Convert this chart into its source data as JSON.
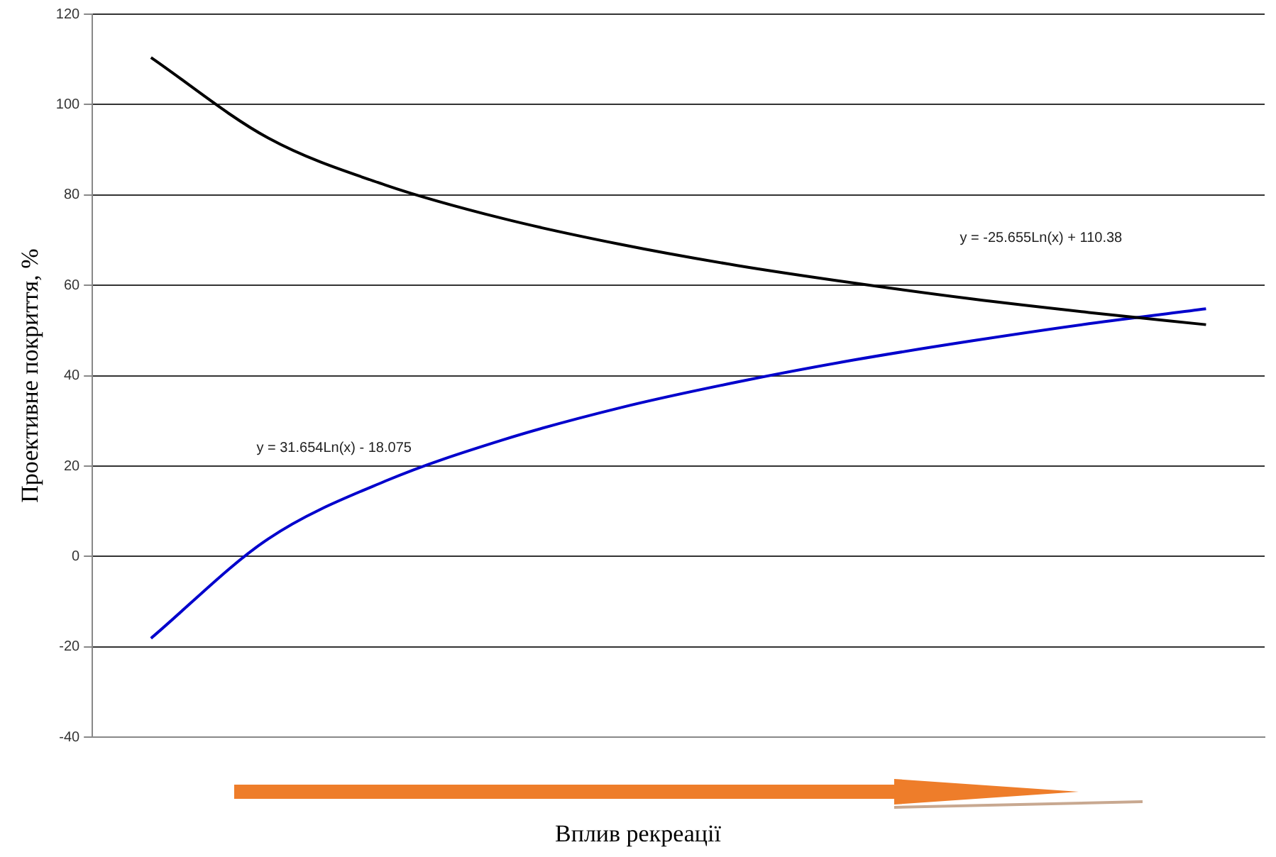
{
  "chart_data": {
    "type": "line",
    "ylabel": "Проективне покриття, %",
    "xlabel": "Вплив рекреації",
    "categories": [
      null,
      null,
      null,
      null,
      null,
      null,
      null,
      null,
      null,
      null
    ],
    "series": [
      {
        "color": "#000000",
        "values": [
          110.4,
          92.6,
          82.2,
          74.8,
          69.1,
          64.4,
          60.5,
          57.0,
          54.0,
          51.3
        ]
      },
      {
        "color": "#0000cc",
        "values": [
          -18.1,
          3.9,
          16.7,
          25.8,
          32.9,
          38.6,
          43.5,
          47.7,
          51.5,
          54.8
        ]
      }
    ],
    "ylim": [
      -40,
      120
    ],
    "yticks": [
      -40,
      -20,
      0,
      20,
      40,
      60,
      80,
      100,
      120
    ],
    "grid": "y",
    "legend": false,
    "marker": "none",
    "line_style": "solid",
    "annotations": [
      "y = -25.655Ln(x) + 110.38",
      "y = 31.654Ln(x) - 18.075"
    ]
  }
}
